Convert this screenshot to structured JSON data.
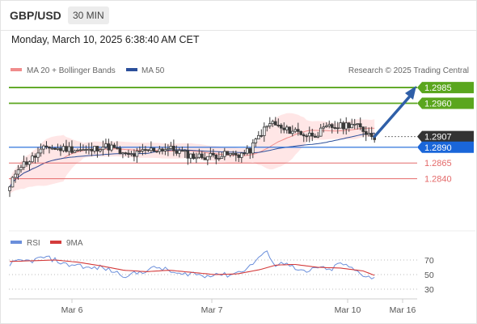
{
  "header": {
    "pair": "GBP/USD",
    "timeframe": "30 MIN"
  },
  "datetime": "Monday, March 10, 2025 6:38:40 AM CET",
  "legend": {
    "bollinger": "MA 20 + Bollinger Bands",
    "ma50": "MA 50",
    "credit": "Research © 2025 Trading Central"
  },
  "rsi_legend": {
    "rsi": "RSI",
    "ma": "9MA"
  },
  "colors": {
    "resistance": "#5aa61e",
    "support": "#e46a6a",
    "pivot": "#1a66d9",
    "current": "#333333",
    "candle": "#3a3a3a",
    "band": "#ffdddd",
    "ma20": "#f08c8c",
    "ma50": "#2b4f9b",
    "rsi": "#6b8fdb",
    "rsi_ma": "#d43b3b"
  },
  "chart_data": {
    "type": "candlestick",
    "x_ticks": [
      "Mar 6",
      "Mar 7",
      "Mar 10",
      "Mar 16"
    ],
    "y_range": [
      1.2766,
      1.2998
    ],
    "levels": [
      {
        "label": "1.2985",
        "value": 1.2985,
        "kind": "resistance"
      },
      {
        "label": "1.2960",
        "value": 1.296,
        "kind": "resistance"
      },
      {
        "label": "1.2907",
        "value": 1.2907,
        "kind": "current"
      },
      {
        "label": "1.2890",
        "value": 1.289,
        "kind": "pivot"
      },
      {
        "label": "1.2865",
        "value": 1.2865,
        "kind": "support"
      },
      {
        "label": "1.2840",
        "value": 1.284,
        "kind": "support"
      }
    ],
    "price_path": [
      [
        0,
        1.2825
      ],
      [
        2,
        1.2858
      ],
      [
        5,
        1.2868
      ],
      [
        8,
        1.2882
      ],
      [
        10,
        1.2892
      ],
      [
        12,
        1.2887
      ],
      [
        15,
        1.2888
      ],
      [
        18,
        1.2886
      ],
      [
        21,
        1.2884
      ],
      [
        24,
        1.2892
      ],
      [
        27,
        1.289
      ],
      [
        30,
        1.2877
      ],
      [
        33,
        1.2878
      ],
      [
        36,
        1.2885
      ],
      [
        39,
        1.2887
      ],
      [
        42,
        1.2888
      ],
      [
        45,
        1.2882
      ],
      [
        48,
        1.2876
      ],
      [
        51,
        1.2875
      ],
      [
        54,
        1.2877
      ],
      [
        57,
        1.2878
      ],
      [
        60,
        1.2878
      ],
      [
        63,
        1.2883
      ],
      [
        66,
        1.2912
      ],
      [
        69,
        1.293
      ],
      [
        72,
        1.2917
      ],
      [
        75,
        1.2917
      ],
      [
        78,
        1.2909
      ],
      [
        81,
        1.2912
      ],
      [
        84,
        1.2922
      ],
      [
        87,
        1.2923
      ],
      [
        90,
        1.2928
      ],
      [
        93,
        1.2917
      ],
      [
        96,
        1.2907
      ]
    ],
    "rsi": {
      "range": [
        20,
        80
      ],
      "ticks": [
        70,
        50,
        30
      ],
      "rsi_path": [
        [
          0,
          65
        ],
        [
          3,
          68
        ],
        [
          6,
          69
        ],
        [
          9,
          74
        ],
        [
          12,
          70
        ],
        [
          15,
          63
        ],
        [
          18,
          64
        ],
        [
          21,
          58
        ],
        [
          24,
          60
        ],
        [
          27,
          55
        ],
        [
          30,
          49
        ],
        [
          33,
          51
        ],
        [
          36,
          56
        ],
        [
          39,
          60
        ],
        [
          42,
          55
        ],
        [
          45,
          49
        ],
        [
          48,
          53
        ],
        [
          51,
          47
        ],
        [
          54,
          52
        ],
        [
          57,
          49
        ],
        [
          60,
          53
        ],
        [
          63,
          60
        ],
        [
          66,
          76
        ],
        [
          68,
          80
        ],
        [
          70,
          62
        ],
        [
          73,
          68
        ],
        [
          75,
          57
        ],
        [
          78,
          52
        ],
        [
          81,
          61
        ],
        [
          84,
          55
        ],
        [
          87,
          66
        ],
        [
          90,
          58
        ],
        [
          93,
          50
        ],
        [
          96,
          45
        ]
      ],
      "ma_path": [
        [
          0,
          68
        ],
        [
          6,
          69
        ],
        [
          12,
          70
        ],
        [
          18,
          67
        ],
        [
          24,
          62
        ],
        [
          30,
          56
        ],
        [
          36,
          54
        ],
        [
          42,
          56
        ],
        [
          48,
          53
        ],
        [
          54,
          50
        ],
        [
          60,
          51
        ],
        [
          66,
          57
        ],
        [
          70,
          63
        ],
        [
          75,
          64
        ],
        [
          81,
          60
        ],
        [
          87,
          59
        ],
        [
          93,
          55
        ],
        [
          96,
          49
        ]
      ]
    }
  }
}
